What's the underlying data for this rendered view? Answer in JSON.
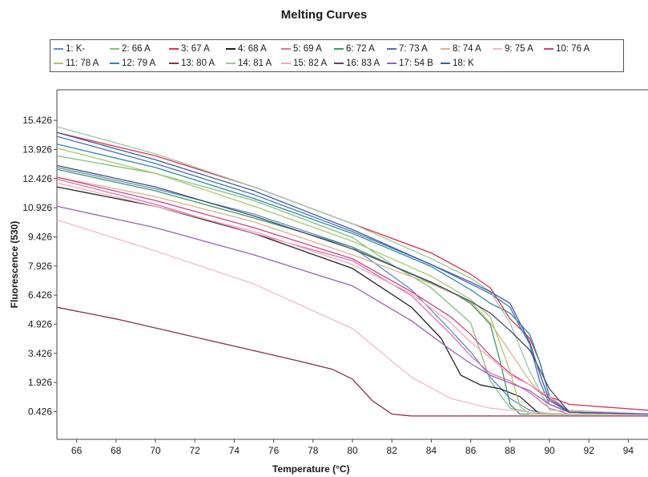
{
  "chart_data": {
    "type": "line",
    "title": "Melting Curves",
    "xlabel": "Temperature (°C)",
    "ylabel": "Fluorescence (530)",
    "xlim": [
      65,
      95
    ],
    "ylim": [
      -1,
      17
    ],
    "xticks": [
      "66",
      "68",
      "70",
      "72",
      "74",
      "76",
      "78",
      "80",
      "82",
      "84",
      "86",
      "88",
      "90",
      "92",
      "94"
    ],
    "yticks": [
      "15.426",
      "13.926",
      "12.426",
      "10.926",
      "9.426",
      "7.926",
      "6.426",
      "4.926",
      "3.426",
      "1.926",
      "0.426"
    ],
    "grid": false,
    "legend_position": "top",
    "series": [
      {
        "name": "1: K-",
        "color": "#5b8fc9",
        "x": [
          65,
          70,
          75,
          80,
          83,
          85,
          86,
          87,
          88,
          89,
          90,
          91,
          95
        ],
        "y": [
          13.0,
          11.9,
          10.6,
          8.9,
          6.7,
          4.6,
          3.5,
          2.2,
          1.1,
          0.5,
          0.3,
          0.3,
          0.3
        ]
      },
      {
        "name": "2: 66 A",
        "color": "#7fbf7f",
        "x": [
          65,
          70,
          75,
          80,
          82,
          84,
          86,
          87,
          88,
          89,
          90,
          91,
          95
        ],
        "y": [
          13.6,
          12.7,
          11.3,
          9.4,
          8.0,
          6.8,
          5.0,
          2.0,
          0.6,
          0.4,
          0.3,
          0.3,
          0.3
        ]
      },
      {
        "name": "3: 67 A",
        "color": "#e0334f",
        "x": [
          65,
          70,
          75,
          80,
          84,
          86,
          87,
          88,
          89,
          89.5,
          90,
          91,
          95
        ],
        "y": [
          14.8,
          13.6,
          12.0,
          10.1,
          8.6,
          7.5,
          6.8,
          5.2,
          4.2,
          3.0,
          1.2,
          0.8,
          0.5
        ]
      },
      {
        "name": "4: 68 A",
        "color": "#222222",
        "x": [
          65,
          70,
          75,
          80,
          83,
          84.5,
          85.5,
          86.5,
          87.5,
          88.5,
          89.5,
          95
        ],
        "y": [
          12.0,
          11.0,
          9.6,
          7.8,
          5.8,
          4.2,
          2.3,
          1.8,
          1.6,
          1.2,
          0.3,
          0.3
        ]
      },
      {
        "name": "5: 69 A",
        "color": "#e06fae",
        "x": [
          65,
          70,
          75,
          80,
          83,
          85,
          86,
          87,
          88,
          89,
          90,
          91,
          95
        ],
        "y": [
          12.4,
          11.1,
          9.6,
          8.2,
          6.4,
          4.4,
          3.3,
          2.4,
          2.0,
          1.4,
          0.6,
          0.3,
          0.3
        ]
      },
      {
        "name": "6: 72 A",
        "color": "#3a9a60",
        "x": [
          65,
          70,
          75,
          80,
          83,
          85,
          86,
          87,
          87.5,
          88,
          88.5,
          89,
          95
        ],
        "y": [
          12.9,
          11.8,
          10.4,
          8.9,
          7.5,
          6.6,
          6.0,
          4.9,
          3.0,
          0.8,
          0.3,
          0.3,
          0.3
        ]
      },
      {
        "name": "7: 73 A",
        "color": "#4d6fb8",
        "x": [
          65,
          70,
          75,
          80,
          84,
          86,
          87,
          88,
          88.5,
          89,
          89.5,
          90,
          91,
          95
        ],
        "y": [
          14.6,
          13.2,
          11.6,
          9.7,
          8.0,
          7.0,
          6.5,
          5.8,
          4.8,
          3.9,
          2.0,
          0.8,
          0.4,
          0.3
        ]
      },
      {
        "name": "8: 74 A",
        "color": "#d9b48a",
        "x": [
          65,
          70,
          75,
          80,
          84,
          86,
          87,
          88,
          89,
          90,
          91,
          95
        ],
        "y": [
          12.5,
          11.5,
          10.2,
          8.5,
          7.0,
          6.1,
          5.0,
          3.5,
          2.0,
          0.8,
          0.4,
          0.3
        ]
      },
      {
        "name": "9: 75 A",
        "color": "#f0b8d4",
        "x": [
          65,
          70,
          75,
          80,
          83,
          85,
          87,
          89,
          91,
          95
        ],
        "y": [
          10.3,
          8.7,
          7.0,
          4.7,
          2.2,
          1.1,
          0.6,
          0.4,
          0.3,
          0.3
        ]
      },
      {
        "name": "10: 76 A",
        "color": "#d0457f",
        "x": [
          65,
          70,
          75,
          80,
          83,
          85,
          86,
          87,
          88,
          89,
          90,
          91,
          95
        ],
        "y": [
          12.5,
          11.3,
          9.9,
          8.3,
          6.6,
          5.3,
          4.4,
          3.3,
          2.4,
          1.8,
          1.1,
          0.4,
          0.3
        ]
      },
      {
        "name": "11: 78 A",
        "color": "#a8c86a",
        "x": [
          65,
          70,
          75,
          80,
          84,
          86,
          87,
          88,
          88.5,
          89,
          95
        ],
        "y": [
          14.0,
          12.7,
          11.0,
          9.2,
          7.4,
          6.2,
          5.3,
          2.5,
          0.7,
          0.3,
          0.3
        ]
      },
      {
        "name": "12: 79 A",
        "color": "#2c8aa0",
        "x": [
          65,
          70,
          75,
          80,
          84,
          86,
          87,
          88,
          89,
          89.5,
          90,
          91,
          95
        ],
        "y": [
          14.2,
          13.0,
          11.4,
          9.6,
          7.9,
          6.7,
          6.0,
          5.5,
          4.4,
          3.0,
          1.2,
          0.4,
          0.3
        ]
      },
      {
        "name": "13: 80 A",
        "color": "#8a2e4e",
        "x": [
          65,
          68,
          71,
          74,
          77,
          79,
          80,
          81,
          82,
          83,
          84,
          88,
          95
        ],
        "y": [
          5.8,
          5.2,
          4.5,
          3.8,
          3.1,
          2.6,
          2.1,
          1.0,
          0.3,
          0.2,
          0.2,
          0.2,
          0.2
        ]
      },
      {
        "name": "14: 81 A",
        "color": "#9ec7a0",
        "x": [
          65,
          70,
          75,
          80,
          84,
          86,
          87,
          88,
          89,
          90,
          95
        ],
        "y": [
          15.1,
          13.7,
          12.0,
          10.1,
          8.3,
          7.3,
          6.6,
          5.0,
          2.5,
          0.5,
          0.3
        ]
      },
      {
        "name": "15: 82 A",
        "color": "#f2a8b8",
        "x": [
          65,
          70,
          75,
          80,
          83,
          85,
          86,
          87,
          88,
          89,
          90,
          91,
          95
        ],
        "y": [
          12.2,
          11.0,
          9.7,
          8.0,
          6.5,
          5.0,
          4.0,
          3.2,
          2.3,
          1.8,
          1.2,
          0.5,
          0.3
        ]
      },
      {
        "name": "16: 83 A",
        "color": "#4a4a6e",
        "x": [
          65,
          70,
          75,
          80,
          84,
          86,
          87,
          88,
          89,
          90,
          91,
          95
        ],
        "y": [
          13.1,
          12.0,
          10.5,
          8.8,
          7.1,
          6.1,
          5.5,
          4.6,
          3.6,
          1.6,
          0.4,
          0.3
        ]
      },
      {
        "name": "17: 54 B",
        "color": "#9b5fc0",
        "x": [
          65,
          70,
          75,
          80,
          83,
          85,
          86,
          87,
          88,
          89,
          90,
          91,
          95
        ],
        "y": [
          11.0,
          9.9,
          8.5,
          6.9,
          5.1,
          3.6,
          2.9,
          2.3,
          1.9,
          1.5,
          0.8,
          0.4,
          0.3
        ]
      },
      {
        "name": "18: K",
        "color": "#3a5da8",
        "x": [
          65,
          70,
          75,
          80,
          84,
          86,
          87,
          88,
          88.5,
          89,
          89.5,
          90,
          91,
          95
        ],
        "y": [
          14.8,
          13.4,
          11.8,
          9.8,
          8.0,
          7.1,
          6.6,
          6.0,
          5.0,
          4.0,
          2.4,
          1.0,
          0.4,
          0.3
        ]
      }
    ]
  }
}
